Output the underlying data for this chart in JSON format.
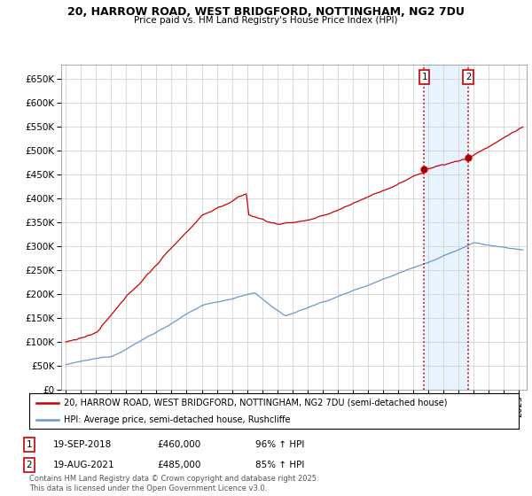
{
  "title": "20, HARROW ROAD, WEST BRIDGFORD, NOTTINGHAM, NG2 7DU",
  "subtitle": "Price paid vs. HM Land Registry's House Price Index (HPI)",
  "ylim": [
    0,
    680000
  ],
  "yticks": [
    0,
    50000,
    100000,
    150000,
    200000,
    250000,
    300000,
    350000,
    400000,
    450000,
    500000,
    550000,
    600000,
    650000
  ],
  "xlim_start": 1994.7,
  "xlim_end": 2025.5,
  "transaction1_x": 2018.72,
  "transaction1_y": 460000,
  "transaction2_x": 2021.63,
  "transaction2_y": 485000,
  "transaction1_label": "19-SEP-2018",
  "transaction2_label": "19-AUG-2021",
  "transaction1_price": "£460,000",
  "transaction2_price": "£485,000",
  "transaction1_hpi": "96% ↑ HPI",
  "transaction2_hpi": "85% ↑ HPI",
  "line1_color": "#cc0000",
  "line2_color": "#6699cc",
  "vline_color": "#cc0000",
  "legend_line1": "20, HARROW ROAD, WEST BRIDGFORD, NOTTINGHAM, NG2 7DU (semi-detached house)",
  "legend_line2": "HPI: Average price, semi-detached house, Rushcliffe",
  "footer": "Contains HM Land Registry data © Crown copyright and database right 2025.\nThis data is licensed under the Open Government Licence v3.0.",
  "bg_color": "#ffffff",
  "grid_color": "#cccccc",
  "highlight_color": "#ddeeff"
}
